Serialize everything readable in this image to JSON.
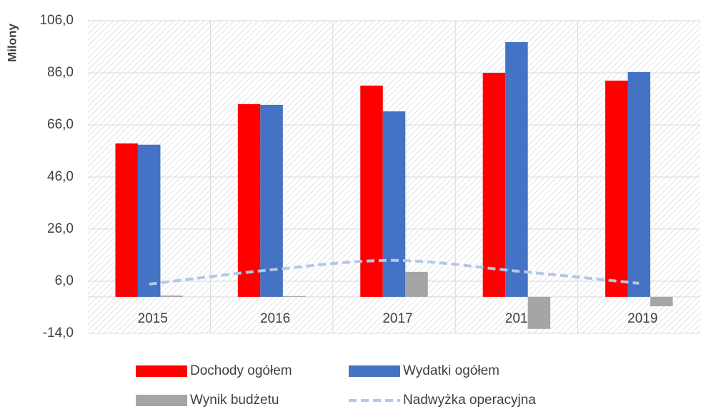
{
  "chart_data": {
    "type": "bar",
    "y_axis_label": "Milony",
    "categories": [
      "2015",
      "2016",
      "2017",
      "2018",
      "2019"
    ],
    "series": [
      {
        "name": "Dochody ogółem",
        "type": "bar",
        "color": "#ff0000",
        "values": [
          58.9,
          74.0,
          81.1,
          86.0,
          83.0
        ]
      },
      {
        "name": "Wydatki ogółem",
        "type": "bar",
        "color": "#4472c4",
        "values": [
          58.4,
          73.7,
          71.2,
          97.8,
          86.3
        ]
      },
      {
        "name": "Wynik budżetu",
        "type": "bar",
        "color": "#a5a5a5",
        "values": [
          0.5,
          0.3,
          9.6,
          -12.3,
          -3.6
        ]
      },
      {
        "name": "Nadwyżka operacyjna",
        "type": "line",
        "color": "#b4c7e7",
        "values": [
          4.9,
          10.4,
          14.0,
          9.9,
          5.2
        ]
      }
    ],
    "ylim": [
      -14,
      106
    ],
    "yticks": [
      {
        "value": -14,
        "label": "-14,0"
      },
      {
        "value": 6,
        "label": "6,0"
      },
      {
        "value": 26,
        "label": "26,0"
      },
      {
        "value": 46,
        "label": "46,0"
      },
      {
        "value": 66,
        "label": "66,0"
      },
      {
        "value": 86,
        "label": "86,0"
      },
      {
        "value": 106,
        "label": "106,0"
      }
    ],
    "grid": true
  }
}
